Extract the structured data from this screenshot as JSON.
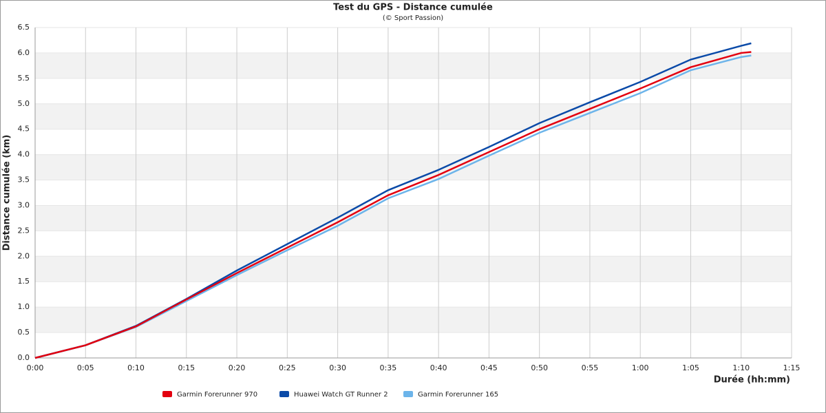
{
  "chart_data": {
    "type": "line",
    "title": "Test du GPS - Distance cumulée",
    "subtitle": "(© Sport Passion)",
    "xlabel": "Durée (hh:mm)",
    "ylabel": "Distance cumulée (km)",
    "x": [
      0,
      5,
      10,
      15,
      20,
      25,
      30,
      35,
      40,
      45,
      50,
      55,
      60,
      65,
      70,
      71
    ],
    "series": [
      {
        "name": "Garmin Forerunner 970",
        "color": "#e3000f",
        "values": [
          0,
          0.25,
          0.62,
          1.15,
          1.67,
          2.17,
          2.67,
          3.2,
          3.6,
          4.05,
          4.5,
          4.9,
          5.3,
          5.72,
          6.0,
          6.02
        ]
      },
      {
        "name": "Huawei Watch GT Runner 2",
        "color": "#0a4aa8",
        "values": [
          0,
          0.25,
          0.63,
          1.16,
          1.72,
          2.24,
          2.76,
          3.3,
          3.7,
          4.15,
          4.62,
          5.03,
          5.43,
          5.87,
          6.14,
          6.19
        ]
      },
      {
        "name": "Garmin Forerunner 165",
        "color": "#6cb4ea",
        "values": [
          0,
          0.25,
          0.61,
          1.12,
          1.63,
          2.12,
          2.6,
          3.14,
          3.52,
          3.98,
          4.43,
          4.82,
          5.21,
          5.66,
          5.92,
          5.95
        ]
      }
    ],
    "xlim": [
      0,
      75
    ],
    "xticks": [
      {
        "value": 0,
        "label": "0:00"
      },
      {
        "value": 5,
        "label": "0:05"
      },
      {
        "value": 10,
        "label": "0:10"
      },
      {
        "value": 15,
        "label": "0:15"
      },
      {
        "value": 20,
        "label": "0:20"
      },
      {
        "value": 25,
        "label": "0:25"
      },
      {
        "value": 30,
        "label": "0:30"
      },
      {
        "value": 35,
        "label": "0:35"
      },
      {
        "value": 40,
        "label": "0:40"
      },
      {
        "value": 45,
        "label": "0:45"
      },
      {
        "value": 50,
        "label": "0:50"
      },
      {
        "value": 55,
        "label": "0:55"
      },
      {
        "value": 60,
        "label": "1:00"
      },
      {
        "value": 65,
        "label": "1:05"
      },
      {
        "value": 70,
        "label": "1:10"
      },
      {
        "value": 75,
        "label": "1:15"
      }
    ],
    "ylim": [
      0,
      6.5
    ],
    "yticks": [
      {
        "value": 0,
        "label": "0.0"
      },
      0.5,
      {
        "value": 1,
        "label": "1.0"
      },
      1.5,
      {
        "value": 2,
        "label": "2.0"
      },
      2.5,
      {
        "value": 3,
        "label": "3.0"
      },
      3.5,
      {
        "value": 4,
        "label": "4.0"
      },
      4.5,
      {
        "value": 5,
        "label": "5.0"
      },
      5.5,
      {
        "value": 6,
        "label": "6.0"
      },
      6.5
    ],
    "grid": true,
    "legend": "bottom"
  }
}
